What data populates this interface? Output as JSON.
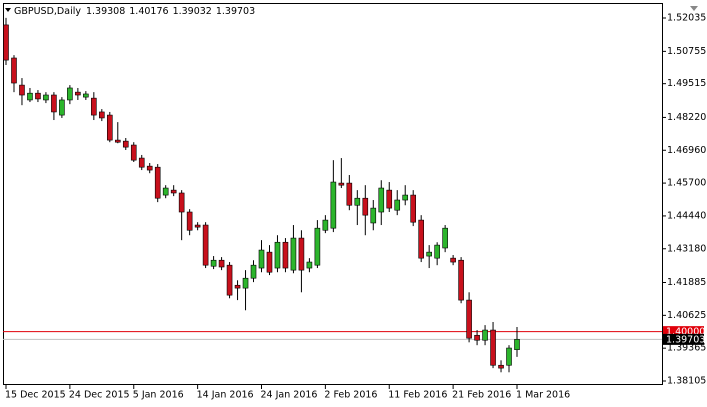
{
  "chart_data": {
    "type": "candlestick",
    "symbol": "GBPUSD,Daily",
    "up_color": "#2cb52c",
    "down_color": "#c8101c",
    "outline_color": "#000000",
    "categories": [
      "15 Dec 2015",
      null,
      null,
      null,
      null,
      null,
      null,
      null,
      "24 Dec 2015",
      null,
      null,
      null,
      null,
      null,
      null,
      null,
      "5 Jan 2016",
      null,
      null,
      null,
      null,
      null,
      null,
      null,
      "14 Jan 2016",
      null,
      null,
      null,
      null,
      null,
      null,
      null,
      "24 Jan 2016",
      null,
      null,
      null,
      null,
      null,
      null,
      null,
      "2 Feb 2016",
      null,
      null,
      null,
      null,
      null,
      null,
      null,
      "11 Feb 2016",
      null,
      null,
      null,
      null,
      null,
      null,
      null,
      "21 Feb 2016",
      null,
      null,
      null,
      null,
      null,
      null,
      null,
      "1 Mar 2016"
    ],
    "open": [
      1.5177,
      1.505,
      1.4946,
      1.4889,
      1.4915,
      1.4889,
      1.4908,
      1.4831,
      1.4889,
      1.4919,
      1.49,
      1.4896,
      1.4843,
      1.4831,
      1.4735,
      1.4731,
      1.4716,
      1.4666,
      1.4635,
      1.4631,
      1.4524,
      1.4543,
      1.4532,
      1.4459,
      1.4409,
      1.4409,
      1.4251,
      1.4274,
      1.4255,
      1.4178,
      1.4167,
      1.4205,
      1.4244,
      1.4305,
      1.4244,
      1.4343,
      1.4236,
      1.4359,
      1.4244,
      1.4255,
      1.4389,
      1.4397,
      1.457,
      1.457,
      1.4485,
      1.4512,
      1.4417,
      1.4459,
      1.4543,
      1.4466,
      1.4505,
      1.4524,
      1.4428,
      1.429,
      1.4282,
      1.4321,
      1.4282,
      1.4274,
      1.4121,
      1.3986,
      1.3967,
      1.4006,
      1.3871,
      1.3871,
      1.39308
    ],
    "high": [
      1.5204,
      1.5061,
      1.4973,
      1.4935,
      1.4927,
      1.4919,
      1.4919,
      1.49,
      1.4946,
      1.4935,
      1.4923,
      1.4919,
      1.4854,
      1.4843,
      1.4804,
      1.4743,
      1.4727,
      1.4678,
      1.4647,
      1.4643,
      1.4562,
      1.4562,
      1.4543,
      1.447,
      1.442,
      1.442,
      1.429,
      1.4286,
      1.4267,
      1.4197,
      1.4236,
      1.4274,
      1.4351,
      1.4332,
      1.437,
      1.4359,
      1.4409,
      1.4389,
      1.4282,
      1.4428,
      1.4447,
      1.4658,
      1.4666,
      1.4601,
      1.4543,
      1.4562,
      1.4505,
      1.4581,
      1.4574,
      1.4543,
      1.4562,
      1.4543,
      1.4447,
      1.4332,
      1.4343,
      1.4409,
      1.4294,
      1.4286,
      1.4151,
      1.4006,
      1.4025,
      1.4037,
      1.389,
      1.3948,
      1.40176
    ],
    "low": [
      1.5023,
      1.4919,
      1.4869,
      1.4881,
      1.4881,
      1.4877,
      1.4812,
      1.482,
      1.4873,
      1.4889,
      1.4889,
      1.4812,
      1.4808,
      1.4727,
      1.4723,
      1.4697,
      1.4651,
      1.462,
      1.4608,
      1.4497,
      1.4512,
      1.452,
      1.4351,
      1.437,
      1.4389,
      1.4244,
      1.424,
      1.4236,
      1.4128,
      1.4121,
      1.4082,
      1.419,
      1.4228,
      1.4217,
      1.4228,
      1.4228,
      1.4224,
      1.4151,
      1.4228,
      1.4244,
      1.4378,
      1.4382,
      1.4551,
      1.4466,
      1.4409,
      1.437,
      1.4389,
      1.4409,
      1.4459,
      1.4447,
      1.4485,
      1.4405,
      1.4267,
      1.4244,
      1.4255,
      1.4305,
      1.4255,
      1.4109,
      1.3959,
      1.3948,
      1.3948,
      1.386,
      1.3844,
      1.3844,
      1.39032
    ],
    "close": [
      1.5042,
      1.4954,
      1.4908,
      1.4915,
      1.4893,
      1.4908,
      1.4843,
      1.4889,
      1.4935,
      1.4908,
      1.4912,
      1.4831,
      1.482,
      1.4735,
      1.4727,
      1.4708,
      1.4658,
      1.4631,
      1.462,
      1.4512,
      1.4551,
      1.4532,
      1.4459,
      1.4389,
      1.4401,
      1.4255,
      1.4274,
      1.4248,
      1.414,
      1.4167,
      1.4205,
      1.4255,
      1.4313,
      1.4228,
      1.4343,
      1.4244,
      1.4359,
      1.4236,
      1.4267,
      1.4397,
      1.4428,
      1.4574,
      1.4562,
      1.4485,
      1.4512,
      1.4447,
      1.4474,
      1.4551,
      1.4474,
      1.4505,
      1.4524,
      1.442,
      1.4282,
      1.4305,
      1.4332,
      1.4397,
      1.4267,
      1.4121,
      1.3975,
      1.3967,
      1.4006,
      1.3871,
      1.386,
      1.3937,
      1.39703
    ],
    "ylim": [
      1.37952,
      1.52611
    ],
    "yticks": [
      1.52035,
      1.50755,
      1.49515,
      {
        "value": 1.4822,
        "label": "1.48220"
      },
      {
        "value": 1.4696,
        "label": "1.46960"
      },
      {
        "value": 1.457,
        "label": "1.45700"
      },
      {
        "value": 1.4444,
        "label": "1.44440"
      },
      {
        "value": 1.4318,
        "label": "1.43180"
      },
      1.41885,
      1.40625,
      1.39365,
      1.38105
    ],
    "level_line": {
      "value": 1.4,
      "label": "1.40000",
      "color": "#e0000a"
    },
    "price_line": {
      "value": 1.39703,
      "color": "#c0c0c0"
    }
  }
}
